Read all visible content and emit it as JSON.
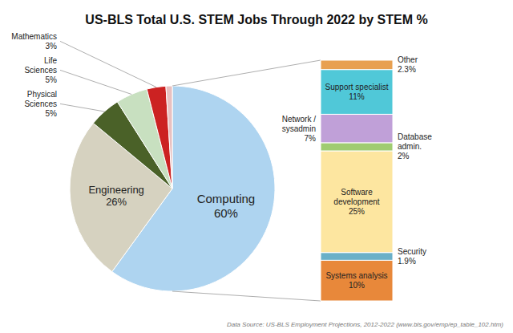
{
  "chart_data": [
    {
      "type": "pie",
      "title": "US-BLS Total U.S. STEM Jobs Through 2022 by STEM %",
      "categories": [
        "Computing",
        "Engineering",
        "Physical\nSciences",
        "Life\nSciences",
        "Mathematics",
        null
      ],
      "values": [
        60,
        26,
        5,
        5,
        3,
        1
      ],
      "value_labels": [
        "60%",
        "26%",
        "5%",
        "5%",
        "3%",
        null
      ],
      "colors": [
        "#aed4f0",
        "#d6d2c0",
        "#4a6128",
        "#c8e0c0",
        "#cc2222",
        "#e8c0c0"
      ],
      "data_labels": true,
      "annotations": [
        "Data Source: US-BLS Employment Projections, 2012-2022 (www.bls.gov/emp/ep_table_102.htm)"
      ]
    },
    {
      "type": "bar",
      "stacked": true,
      "categories": [
        null
      ],
      "series": [
        {
          "name": "Systems analysis",
          "color": "#e8883a",
          "values": [
            10
          ],
          "value_labels": [
            "10%"
          ]
        },
        {
          "name": "Security",
          "color": "#6ab0c8",
          "values": [
            1.9
          ],
          "value_labels": [
            "1.9%"
          ]
        },
        {
          "name": "Software\ndevelopment",
          "color": "#fde6a0",
          "values": [
            25
          ],
          "value_labels": [
            "25%"
          ]
        },
        {
          "name": "Database\nadmin.",
          "color": "#a0cc70",
          "values": [
            2
          ],
          "value_labels": [
            "2%"
          ]
        },
        {
          "name": "Network /\nsysadmin",
          "color": "#c0a0d8",
          "values": [
            7
          ],
          "value_labels": [
            "7%"
          ]
        },
        {
          "name": "Support specialist",
          "color": "#50c8d8",
          "values": [
            11
          ],
          "value_labels": [
            "11%"
          ]
        },
        {
          "name": "Other",
          "color": "#e8a050",
          "values": [
            2.3
          ],
          "value_labels": [
            "2.3%"
          ]
        }
      ],
      "ylim": [
        0,
        59.2
      ],
      "tick_labels": false,
      "data_labels": true
    }
  ]
}
